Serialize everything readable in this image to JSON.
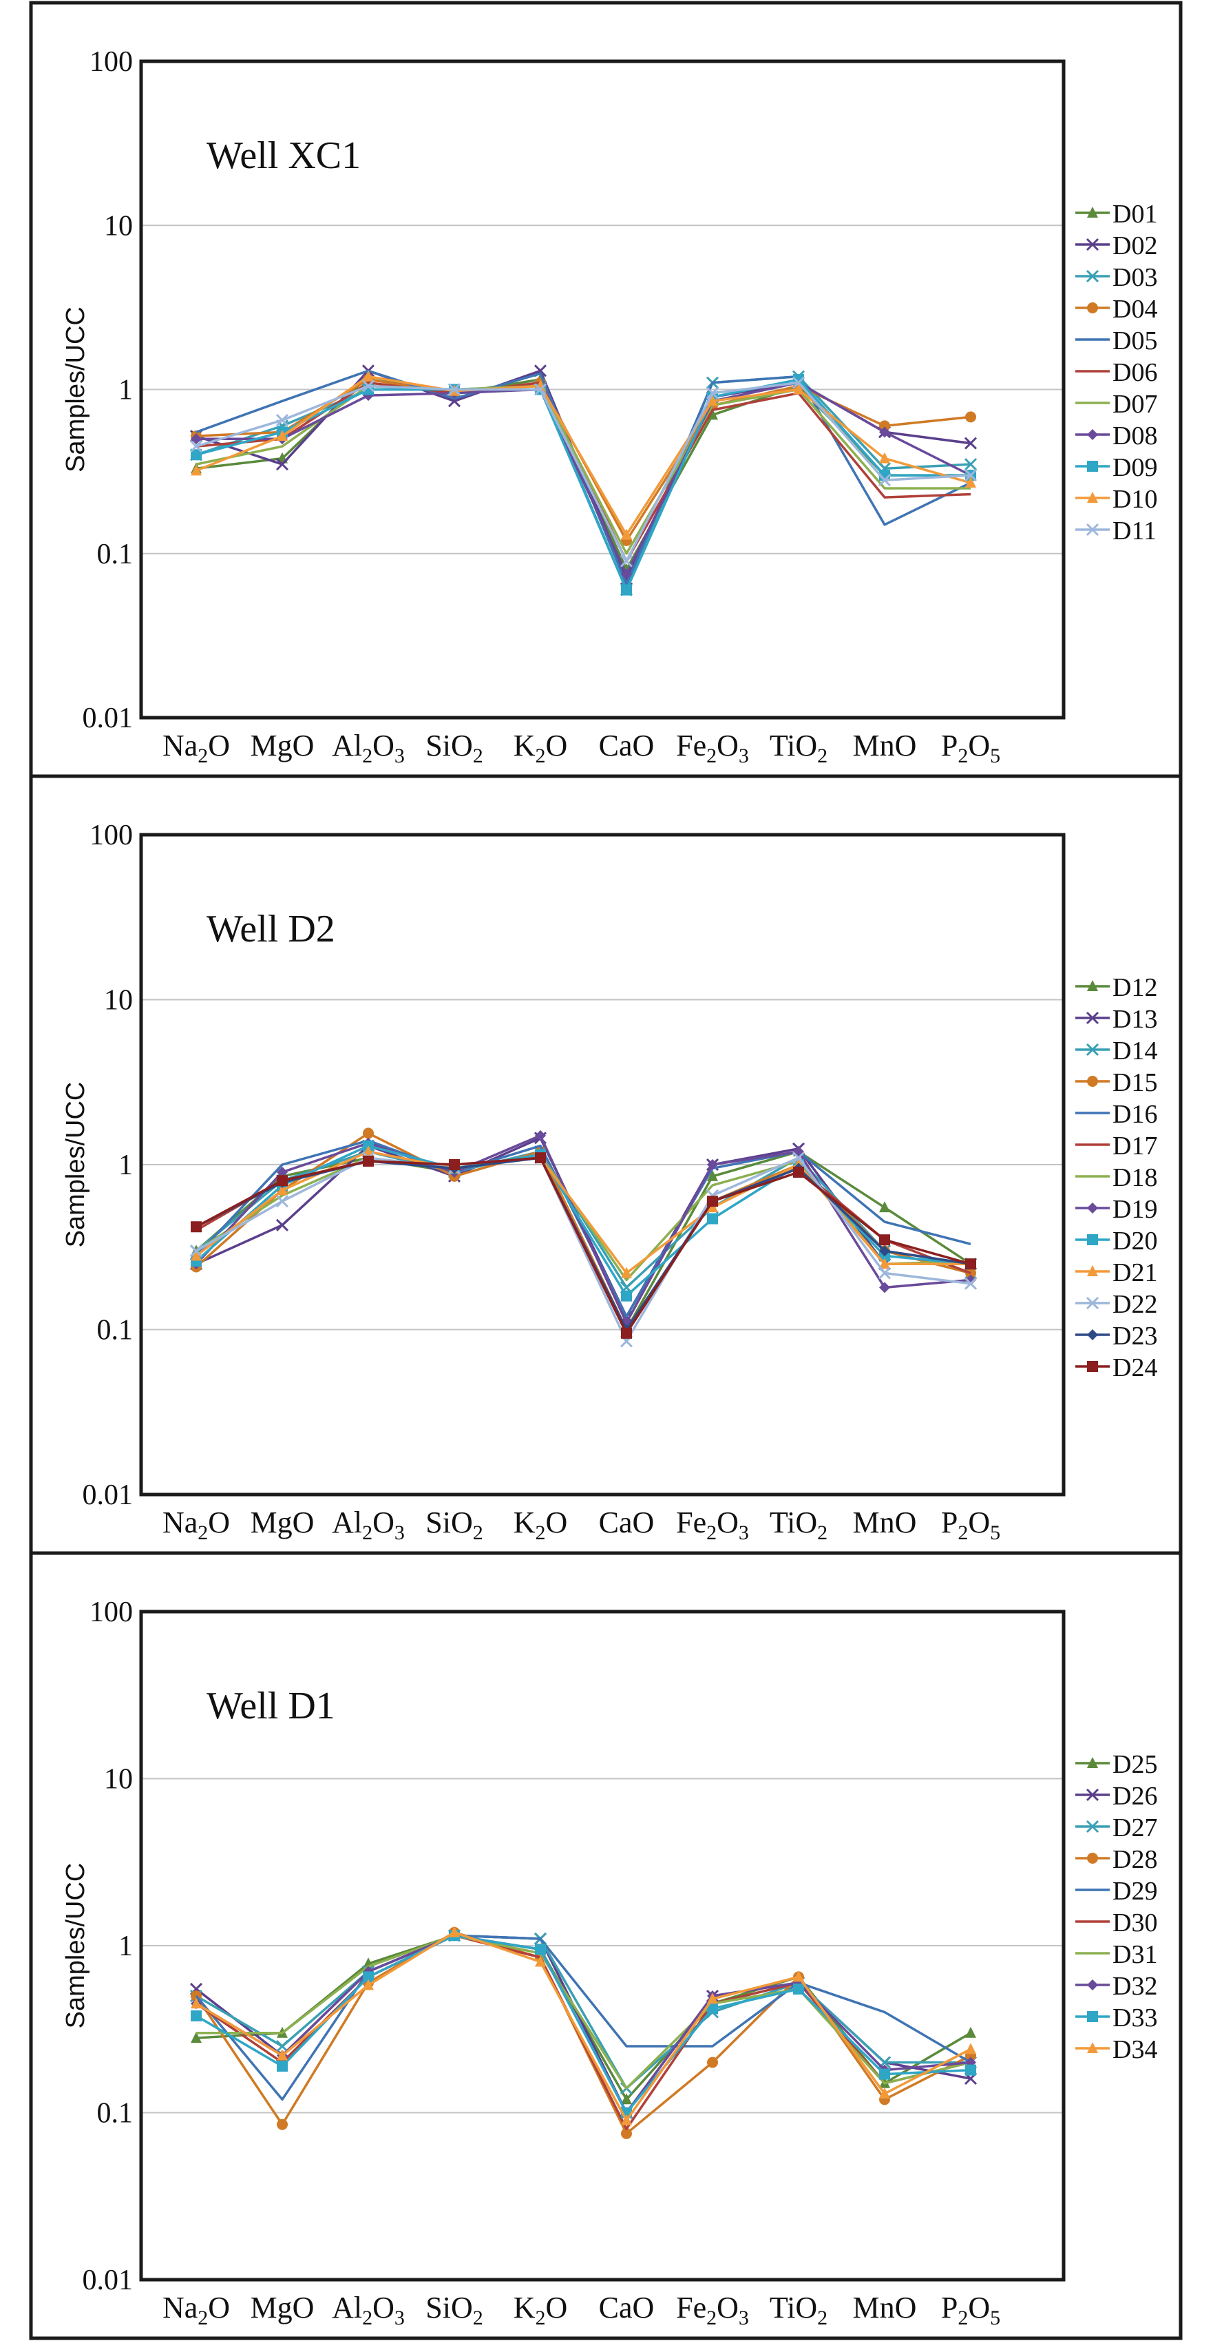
{
  "figure": {
    "categories": [
      "Na2O",
      "MgO",
      "Al2O3",
      "SiO2",
      "K2O",
      "CaO",
      "Fe2O3",
      "TiO2",
      "MnO",
      "P2O5"
    ],
    "category_labels": [
      {
        "base": "Na",
        "sub": "2",
        "tail": "O",
        "sub2": ""
      },
      {
        "base": "MgO",
        "sub": "",
        "tail": "",
        "sub2": ""
      },
      {
        "base": "Al",
        "sub": "2",
        "tail": "O",
        "sub2": "3"
      },
      {
        "base": "SiO",
        "sub": "2",
        "tail": "",
        "sub2": ""
      },
      {
        "base": "K",
        "sub": "2",
        "tail": "O",
        "sub2": ""
      },
      {
        "base": "CaO",
        "sub": "",
        "tail": "",
        "sub2": ""
      },
      {
        "base": "Fe",
        "sub": "2",
        "tail": "O",
        "sub2": "3"
      },
      {
        "base": "TiO",
        "sub": "2",
        "tail": "",
        "sub2": ""
      },
      {
        "base": "MnO",
        "sub": "",
        "tail": "",
        "sub2": ""
      },
      {
        "base": "P",
        "sub": "2",
        "tail": "O",
        "sub2": "5"
      }
    ],
    "ylabel": "Samples/UCC",
    "yticks": [
      "100",
      "10",
      "1",
      "0.1",
      "0.01"
    ]
  },
  "chart_data": [
    {
      "type": "line",
      "title": "Well XC1",
      "ylabel": "Samples/UCC",
      "yscale": "log",
      "ylim": [
        0.01,
        100
      ],
      "categories": [
        "Na2O",
        "MgO",
        "Al2O3",
        "SiO2",
        "K2O",
        "CaO",
        "Fe2O3",
        "TiO2",
        "MnO",
        "P2O5"
      ],
      "series": [
        {
          "name": "D01",
          "color": "#5a8a3a",
          "marker": "triangle",
          "values": [
            0.33,
            0.38,
            1.2,
            0.95,
            1.15,
            0.08,
            0.7,
            1.05,
            0.3,
            0.3
          ]
        },
        {
          "name": "D02",
          "color": "#5b3f8c",
          "marker": "x",
          "values": [
            0.52,
            0.35,
            1.3,
            0.85,
            1.3,
            0.07,
            0.9,
            1.1,
            0.55,
            0.47
          ]
        },
        {
          "name": "D03",
          "color": "#3aa0b4",
          "marker": "x",
          "values": [
            0.4,
            0.6,
            1.0,
            1.0,
            1.05,
            0.06,
            1.1,
            1.2,
            0.33,
            0.35
          ]
        },
        {
          "name": "D04",
          "color": "#d07a25",
          "marker": "circle",
          "values": [
            0.52,
            0.55,
            1.15,
            0.95,
            1.1,
            0.12,
            0.8,
            1.05,
            0.6,
            0.68
          ]
        },
        {
          "name": "D05",
          "color": "#3f74b4",
          "marker": "none",
          "values": [
            0.55,
            0.85,
            1.3,
            0.88,
            1.25,
            0.065,
            1.1,
            1.2,
            0.15,
            0.27
          ]
        },
        {
          "name": "D06",
          "color": "#b0403a",
          "marker": "none",
          "values": [
            0.45,
            0.5,
            1.1,
            0.95,
            1.1,
            0.09,
            0.75,
            0.95,
            0.22,
            0.23
          ]
        },
        {
          "name": "D07",
          "color": "#8cb050",
          "marker": "none",
          "values": [
            0.35,
            0.45,
            1.05,
            1.0,
            1.05,
            0.1,
            0.8,
            1.0,
            0.25,
            0.25
          ]
        },
        {
          "name": "D08",
          "color": "#6a4a9a",
          "marker": "diamond",
          "values": [
            0.5,
            0.5,
            0.92,
            0.95,
            1.0,
            0.075,
            0.85,
            1.1,
            0.55,
            0.3
          ]
        },
        {
          "name": "D09",
          "color": "#2fa6c6",
          "marker": "square",
          "values": [
            0.4,
            0.55,
            1.0,
            1.0,
            1.0,
            0.06,
            0.9,
            1.15,
            0.3,
            0.3
          ]
        },
        {
          "name": "D10",
          "color": "#f29a3a",
          "marker": "triangle",
          "values": [
            0.32,
            0.52,
            1.2,
            0.98,
            1.05,
            0.13,
            0.85,
            1.0,
            0.38,
            0.27
          ]
        },
        {
          "name": "D11",
          "color": "#9db7dc",
          "marker": "x",
          "values": [
            0.45,
            0.65,
            1.05,
            1.0,
            1.0,
            0.09,
            0.95,
            1.1,
            0.28,
            0.3
          ]
        }
      ]
    },
    {
      "type": "line",
      "title": "Well D2",
      "ylabel": "Samples/UCC",
      "yscale": "log",
      "ylim": [
        0.01,
        100
      ],
      "categories": [
        "Na2O",
        "MgO",
        "Al2O3",
        "SiO2",
        "K2O",
        "CaO",
        "Fe2O3",
        "TiO2",
        "MnO",
        "P2O5"
      ],
      "series": [
        {
          "name": "D12",
          "color": "#5a8a3a",
          "marker": "triangle",
          "values": [
            0.3,
            0.85,
            1.1,
            0.9,
            1.2,
            0.1,
            0.85,
            1.2,
            0.55,
            0.25
          ]
        },
        {
          "name": "D13",
          "color": "#5b3f8c",
          "marker": "x",
          "values": [
            0.25,
            0.43,
            1.3,
            0.85,
            1.45,
            0.12,
            1.0,
            1.25,
            0.25,
            0.25
          ]
        },
        {
          "name": "D14",
          "color": "#3aa0b4",
          "marker": "x",
          "values": [
            0.3,
            0.8,
            1.2,
            0.9,
            1.2,
            0.18,
            0.55,
            1.1,
            0.3,
            0.22
          ]
        },
        {
          "name": "D15",
          "color": "#d07a25",
          "marker": "circle",
          "values": [
            0.24,
            0.7,
            1.55,
            0.85,
            1.2,
            0.1,
            0.6,
            1.0,
            0.3,
            0.22
          ]
        },
        {
          "name": "D16",
          "color": "#3f74b4",
          "marker": "none",
          "values": [
            0.28,
            1.0,
            1.4,
            0.9,
            1.3,
            0.12,
            0.95,
            1.2,
            0.45,
            0.33
          ]
        },
        {
          "name": "D17",
          "color": "#b0403a",
          "marker": "none",
          "values": [
            0.4,
            0.8,
            1.05,
            1.0,
            1.1,
            0.1,
            0.6,
            0.95,
            0.35,
            0.22
          ]
        },
        {
          "name": "D18",
          "color": "#8cb050",
          "marker": "none",
          "values": [
            0.3,
            0.65,
            1.1,
            0.95,
            1.15,
            0.2,
            0.75,
            1.05,
            0.25,
            0.26
          ]
        },
        {
          "name": "D19",
          "color": "#6a4a9a",
          "marker": "diamond",
          "values": [
            0.25,
            0.9,
            1.35,
            0.9,
            1.5,
            0.11,
            1.0,
            1.2,
            0.18,
            0.2
          ]
        },
        {
          "name": "D20",
          "color": "#2fa6c6",
          "marker": "square",
          "values": [
            0.26,
            0.75,
            1.3,
            0.95,
            1.15,
            0.16,
            0.47,
            1.0,
            0.28,
            0.25
          ]
        },
        {
          "name": "D21",
          "color": "#f29a3a",
          "marker": "triangle",
          "values": [
            0.28,
            0.7,
            1.2,
            0.95,
            1.1,
            0.22,
            0.55,
            1.0,
            0.25,
            0.25
          ]
        },
        {
          "name": "D22",
          "color": "#9db7dc",
          "marker": "x",
          "values": [
            0.3,
            0.6,
            1.1,
            0.95,
            1.1,
            0.085,
            0.65,
            1.1,
            0.22,
            0.19
          ]
        },
        {
          "name": "D23",
          "color": "#2e4a86",
          "marker": "diamond",
          "values": [
            0.42,
            0.78,
            1.05,
            0.95,
            1.1,
            0.1,
            0.6,
            0.95,
            0.3,
            0.25
          ]
        },
        {
          "name": "D24",
          "color": "#8b1f1f",
          "marker": "square",
          "values": [
            0.42,
            0.8,
            1.05,
            1.0,
            1.1,
            0.095,
            0.6,
            0.9,
            0.35,
            0.25
          ]
        }
      ]
    },
    {
      "type": "line",
      "title": "Well D1",
      "ylabel": "Samples/UCC",
      "yscale": "log",
      "ylim": [
        0.01,
        100
      ],
      "categories": [
        "Na2O",
        "MgO",
        "Al2O3",
        "SiO2",
        "K2O",
        "CaO",
        "Fe2O3",
        "TiO2",
        "MnO",
        "P2O5"
      ],
      "series": [
        {
          "name": "D25",
          "color": "#5a8a3a",
          "marker": "triangle",
          "values": [
            0.28,
            0.3,
            0.78,
            1.15,
            0.95,
            0.12,
            0.45,
            0.65,
            0.15,
            0.3
          ]
        },
        {
          "name": "D26",
          "color": "#5b3f8c",
          "marker": "x",
          "values": [
            0.55,
            0.22,
            0.7,
            1.15,
            1.1,
            0.1,
            0.5,
            0.6,
            0.2,
            0.16
          ]
        },
        {
          "name": "D27",
          "color": "#3aa0b4",
          "marker": "x",
          "values": [
            0.5,
            0.25,
            0.7,
            1.15,
            1.1,
            0.14,
            0.4,
            0.6,
            0.2,
            0.2
          ]
        },
        {
          "name": "D28",
          "color": "#d07a25",
          "marker": "circle",
          "values": [
            0.5,
            0.085,
            0.6,
            1.2,
            0.85,
            0.075,
            0.2,
            0.65,
            0.12,
            0.22
          ]
        },
        {
          "name": "D29",
          "color": "#3f74b4",
          "marker": "none",
          "values": [
            0.5,
            0.12,
            0.7,
            1.15,
            1.1,
            0.25,
            0.25,
            0.6,
            0.4,
            0.2
          ]
        },
        {
          "name": "D30",
          "color": "#b0403a",
          "marker": "none",
          "values": [
            0.45,
            0.2,
            0.65,
            1.15,
            0.85,
            0.08,
            0.45,
            0.6,
            0.15,
            0.2
          ]
        },
        {
          "name": "D31",
          "color": "#8cb050",
          "marker": "none",
          "values": [
            0.3,
            0.3,
            0.75,
            1.15,
            0.9,
            0.14,
            0.45,
            0.55,
            0.15,
            0.2
          ]
        },
        {
          "name": "D32",
          "color": "#6a4a9a",
          "marker": "diamond",
          "values": [
            0.45,
            0.22,
            0.7,
            1.15,
            0.95,
            0.1,
            0.5,
            0.6,
            0.18,
            0.2
          ]
        },
        {
          "name": "D33",
          "color": "#2fa6c6",
          "marker": "square",
          "values": [
            0.38,
            0.19,
            0.65,
            1.15,
            0.95,
            0.1,
            0.42,
            0.55,
            0.17,
            0.18
          ]
        },
        {
          "name": "D34",
          "color": "#f29a3a",
          "marker": "triangle",
          "values": [
            0.45,
            0.22,
            0.58,
            1.2,
            0.8,
            0.09,
            0.48,
            0.65,
            0.13,
            0.24
          ]
        }
      ]
    }
  ]
}
